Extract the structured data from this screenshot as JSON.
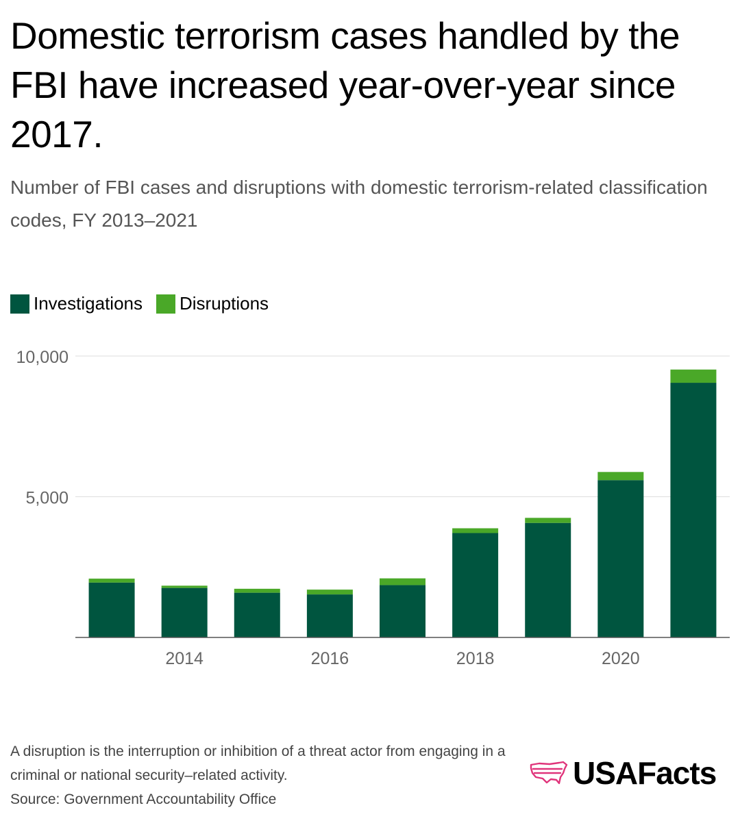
{
  "title": "Domestic terrorism cases handled by the FBI have increased year-over-year since 2017.",
  "subtitle": "Number of FBI cases and disruptions with domestic terrorism-related classification codes, FY 2013–2021",
  "legend": [
    {
      "label": "Investigations",
      "color": "#00553f"
    },
    {
      "label": "Disruptions",
      "color": "#4aa828"
    }
  ],
  "chart_data": {
    "type": "bar",
    "stacked": true,
    "x": [
      2013,
      2014,
      2015,
      2016,
      2017,
      2018,
      2019,
      2020,
      2021
    ],
    "x_tick_labels": [
      "2014",
      "2016",
      "2018",
      "2020"
    ],
    "x_tick_values": [
      2014,
      2016,
      2018,
      2020
    ],
    "y_tick_labels": [
      "10,000",
      "5,000"
    ],
    "y_tick_values": [
      10000,
      5000
    ],
    "ylim": [
      0,
      10000
    ],
    "series": [
      {
        "name": "Investigations",
        "color": "#00553f",
        "values": [
          1950,
          1760,
          1590,
          1530,
          1860,
          3710,
          4070,
          5590,
          9050
        ]
      },
      {
        "name": "Disruptions",
        "color": "#4aa828",
        "values": [
          140,
          80,
          140,
          170,
          240,
          170,
          180,
          290,
          470
        ]
      }
    ]
  },
  "footnote": {
    "line1": "A disruption is the interruption or inhibition of a threat actor from engaging in a criminal or national security–related activity.",
    "source": "Source: Government Accountability Office"
  },
  "logo": {
    "text": "USAFacts",
    "icon": "usa-map-icon",
    "color": "#e0337a"
  }
}
